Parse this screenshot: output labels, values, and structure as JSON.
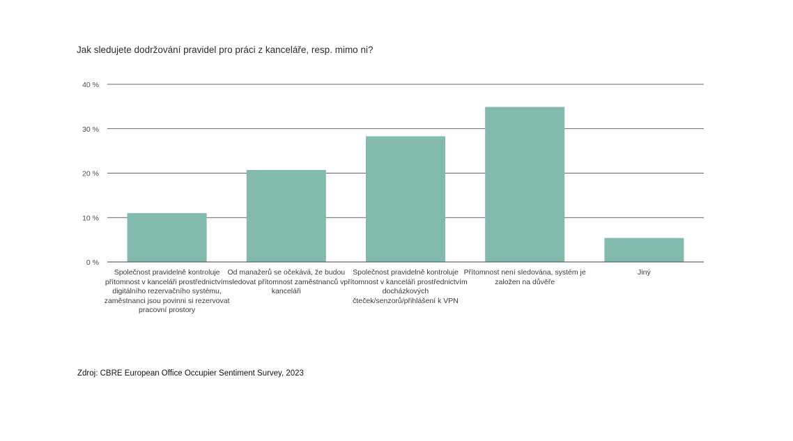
{
  "title": "Jak sledujete dodržování pravidel pro práci z kanceláře, resp. mimo ni?",
  "source": "Zdroj: CBRE European Office Occupier Sentiment Survey, 2023",
  "colors": {
    "bar": "#82bbad",
    "grid": "#333333",
    "text": "#3a3a3a"
  },
  "chart_data": {
    "type": "bar",
    "title": "Jak sledujete dodržování pravidel pro práci z kanceláře, resp. mimo ni?",
    "categories": [
      "Společnost pravidelně kontroluje přítomnost v kanceláři prostřednictvím digitálního rezervačního systému, zaměstnanci jsou povinni si rezervovat pracovní prostory",
      "Od manažerů se očekává, že budou sledovat přítomnost zaměstnanců v kanceláři",
      "Společnost pravidelně kontroluje přítomnost v kanceláři prostřednictvím docházkových čteček/senzorů/přihlášení k VPN",
      "Přítomnost není sledována, systém je založen na důvěře",
      "Jiný"
    ],
    "values": [
      11,
      20.7,
      28.3,
      34.9,
      5.4
    ],
    "xlabel": "",
    "ylabel": "",
    "ylim": [
      0,
      40
    ],
    "yticks": [
      0,
      10,
      20,
      30,
      40
    ],
    "ytick_labels": [
      "0 %",
      "10 %",
      "20 %",
      "30 %",
      "40 %"
    ],
    "grid": true,
    "legend": "none"
  }
}
